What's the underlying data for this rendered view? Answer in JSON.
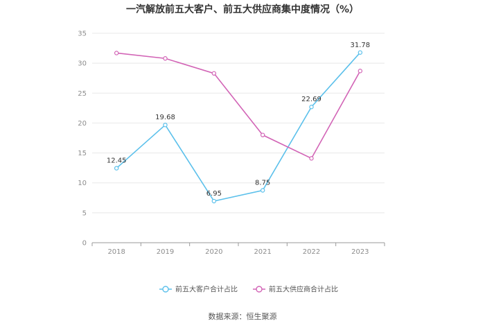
{
  "chart_data": {
    "type": "line",
    "title": "一汽解放前五大客户、前五大供应商集中度情况（%）",
    "categories": [
      "2018",
      "2019",
      "2020",
      "2021",
      "2022",
      "2023"
    ],
    "ylim": [
      0,
      35
    ],
    "yticks": [
      0,
      5,
      10,
      15,
      20,
      25,
      30,
      35
    ],
    "grid": true,
    "legend_position": "bottom",
    "series": [
      {
        "name": "前五大客户合计占比",
        "color": "#5bc0eb",
        "values": [
          12.45,
          19.68,
          6.95,
          8.75,
          22.69,
          31.78
        ],
        "labels": [
          "12.45",
          "19.68",
          "6.95",
          "8.75",
          "22.69",
          "31.78"
        ]
      },
      {
        "name": "前五大供应商合计占比",
        "color": "#d264b6",
        "values": [
          31.7,
          30.8,
          28.3,
          18.0,
          14.1,
          28.7
        ],
        "labels": []
      }
    ],
    "source": "数据来源：恒生聚源"
  }
}
